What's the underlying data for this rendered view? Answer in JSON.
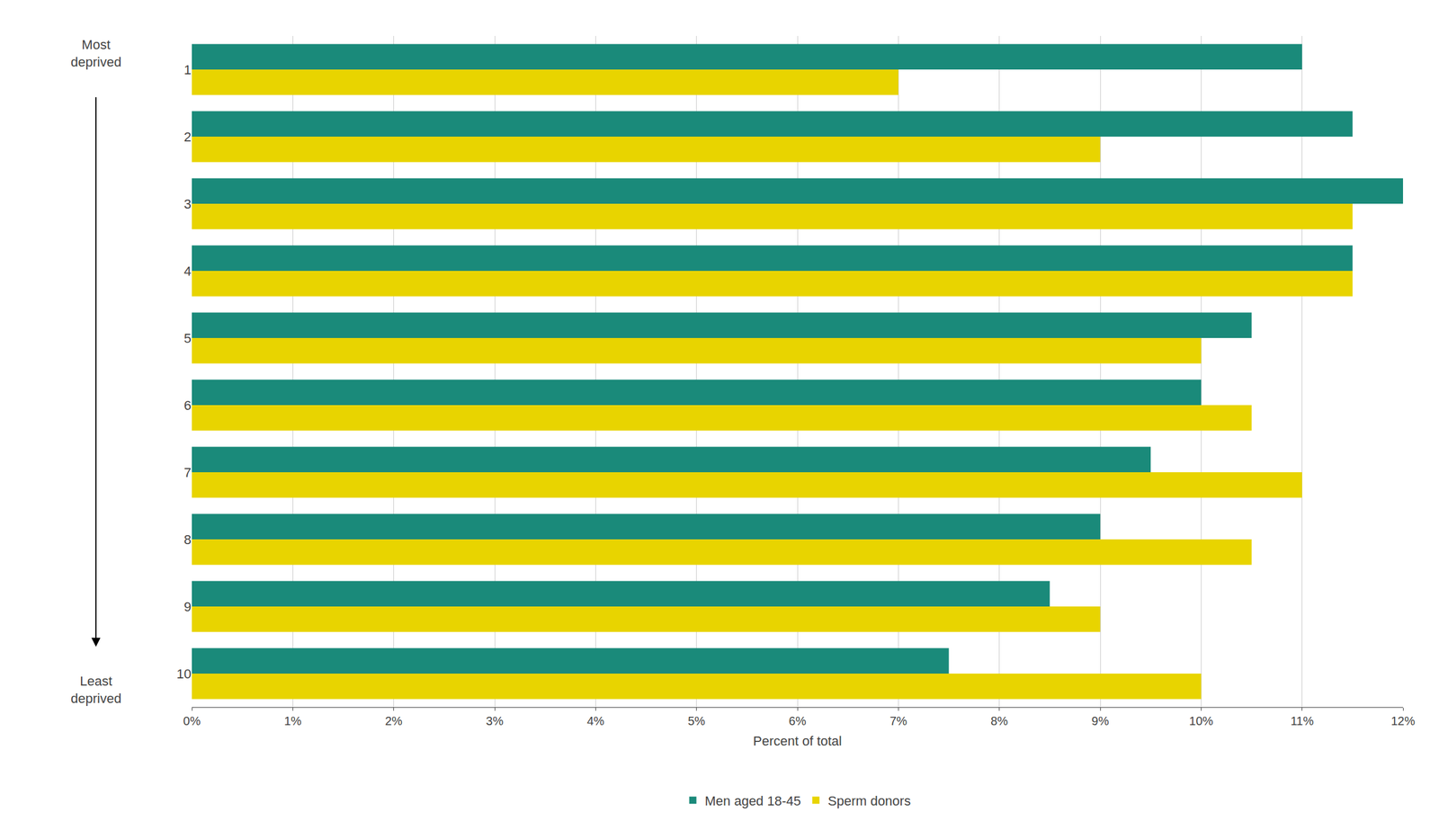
{
  "chart_data": {
    "type": "bar",
    "orientation": "horizontal",
    "xlabel": "Percent of total",
    "annotations": [
      "Most\ndeprived",
      "Least\ndeprived"
    ],
    "categories": [
      "1",
      "2",
      "3",
      "4",
      "5",
      "6",
      "7",
      "8",
      "9",
      "10"
    ],
    "series": [
      {
        "name": "Men aged 18-45",
        "color": "#1a8a7a",
        "values": [
          11.0,
          11.5,
          12.0,
          11.5,
          10.5,
          10.0,
          9.5,
          9.0,
          8.5,
          7.5
        ]
      },
      {
        "name": "Sperm donors",
        "color": "#e8d400",
        "values": [
          7.0,
          9.0,
          11.5,
          11.5,
          10.0,
          10.5,
          11.0,
          10.5,
          9.0,
          10.0
        ]
      }
    ],
    "xlim": [
      0,
      12
    ],
    "xticks": [
      {
        "value": 0,
        "label": "0%"
      },
      {
        "value": 1,
        "label": "1%"
      },
      {
        "value": 2,
        "label": "2%"
      },
      {
        "value": 3,
        "label": "3%"
      },
      {
        "value": 4,
        "label": "4%"
      },
      {
        "value": 5,
        "label": "5%"
      },
      {
        "value": 6,
        "label": "6%"
      },
      {
        "value": 7,
        "label": "7%"
      },
      {
        "value": 8,
        "label": "8%"
      },
      {
        "value": 9,
        "label": "9%"
      },
      {
        "value": 10,
        "label": "10%"
      },
      {
        "value": 11,
        "label": "11%"
      },
      {
        "value": 12,
        "label": "12%"
      }
    ],
    "grid": true,
    "legend": "bottom"
  }
}
